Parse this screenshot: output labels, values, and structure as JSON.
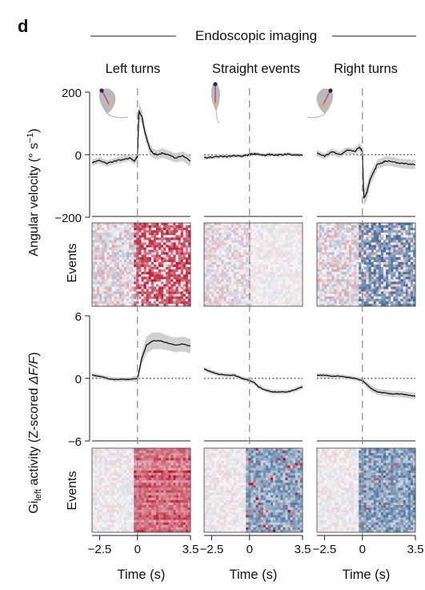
{
  "figure": {
    "panel_letter": "d",
    "group_title": "Endoscopic imaging",
    "columns": [
      "Left turns",
      "Straight events",
      "Right turns"
    ],
    "colors": {
      "line": "#111111",
      "sem": "#c8c8c8",
      "red": "#b3001b",
      "blue": "#1f4f86",
      "gray": "#cfcfcf",
      "fish_body": "#b9b9b9",
      "fish_mark": "#d24a7a",
      "fish_eye": "#1d2a55",
      "fish_tail": "#f2a33a"
    }
  },
  "chart_data": [
    {
      "type": "line",
      "panel": "angular-velocity",
      "ylabel": "Angular velocity (° s⁻¹)",
      "ylabel_main": "Angular velocity (° s",
      "ylabel_sup": "−1",
      "ylabel_close": ")",
      "ylim": [
        -200,
        200
      ],
      "yticks": [
        "200",
        "0",
        "−200"
      ],
      "ytick_values": [
        200,
        0,
        -200
      ],
      "xlim": [
        -3,
        3.5
      ],
      "reference_line_y": 0,
      "event_time": 0,
      "x": [
        -3.0,
        -2.5,
        -2.0,
        -1.5,
        -1.0,
        -0.5,
        -0.2,
        0.0,
        0.1,
        0.3,
        0.5,
        0.8,
        1.0,
        1.3,
        1.6,
        2.0,
        2.5,
        3.0,
        3.5
      ],
      "series": [
        {
          "column": "Left turns",
          "y": [
            -25,
            -18,
            -28,
            -20,
            -15,
            -10,
            -20,
            -5,
            140,
            120,
            70,
            20,
            5,
            0,
            5,
            0,
            -10,
            -5,
            -20
          ],
          "sem": [
            10,
            10,
            10,
            10,
            10,
            10,
            12,
            15,
            25,
            25,
            20,
            18,
            15,
            15,
            15,
            15,
            15,
            15,
            18
          ]
        },
        {
          "column": "Straight events",
          "y": [
            -10,
            -8,
            -5,
            -6,
            -3,
            -4,
            -2,
            0,
            2,
            3,
            2,
            0,
            -2,
            1,
            0,
            -1,
            2,
            0,
            -2
          ],
          "sem": [
            6,
            6,
            6,
            6,
            6,
            6,
            6,
            6,
            6,
            6,
            6,
            6,
            6,
            6,
            6,
            6,
            6,
            6,
            6
          ]
        },
        {
          "column": "Right turns",
          "y": [
            5,
            -5,
            10,
            0,
            15,
            10,
            25,
            10,
            -140,
            -120,
            -80,
            -50,
            -30,
            -25,
            -20,
            -22,
            -28,
            -30,
            -32
          ],
          "sem": [
            10,
            10,
            10,
            10,
            10,
            10,
            12,
            15,
            25,
            25,
            20,
            18,
            15,
            15,
            15,
            15,
            15,
            15,
            15
          ]
        }
      ]
    },
    {
      "type": "heatmap",
      "panel": "angular-velocity-events",
      "ylabel": "Events"
    },
    {
      "type": "line",
      "panel": "gi-activity",
      "ylabel_main": "Gi",
      "ylabel_sub": "left",
      "ylabel_rest": " activity (Z-scored ",
      "ylabel_italic": "ΔF/F",
      "ylabel_close": ")",
      "ylim": [
        -6,
        6
      ],
      "yticks": [
        "6",
        "0",
        "−6"
      ],
      "ytick_values": [
        6,
        0,
        -6
      ],
      "xlim": [
        -3,
        3.5
      ],
      "reference_line_y": 0,
      "event_time": 0,
      "x": [
        -3.0,
        -2.5,
        -2.0,
        -1.5,
        -1.0,
        -0.5,
        0.0,
        0.3,
        0.6,
        1.0,
        1.5,
        2.0,
        2.5,
        3.0,
        3.5
      ],
      "series": [
        {
          "column": "Left turns",
          "y": [
            0.3,
            0.2,
            0.0,
            -0.1,
            -0.1,
            -0.1,
            0.0,
            2.0,
            3.2,
            3.6,
            3.6,
            3.4,
            3.2,
            3.3,
            3.1
          ],
          "sem": [
            0.2,
            0.2,
            0.2,
            0.2,
            0.2,
            0.2,
            0.3,
            0.6,
            0.8,
            0.8,
            0.8,
            0.7,
            0.7,
            0.7,
            0.7
          ]
        },
        {
          "column": "Straight events",
          "y": [
            0.9,
            0.6,
            0.4,
            0.3,
            0.3,
            0.0,
            -0.2,
            -0.4,
            -0.8,
            -1.1,
            -1.3,
            -1.3,
            -1.3,
            -1.1,
            -0.8
          ],
          "sem": [
            0.2,
            0.2,
            0.2,
            0.2,
            0.2,
            0.2,
            0.2,
            0.2,
            0.2,
            0.2,
            0.2,
            0.2,
            0.2,
            0.2,
            0.2
          ]
        },
        {
          "column": "Right turns",
          "y": [
            0.3,
            0.3,
            0.2,
            0.2,
            0.1,
            0.0,
            -0.2,
            -0.6,
            -1.0,
            -1.3,
            -1.4,
            -1.5,
            -1.5,
            -1.6,
            -1.7
          ],
          "sem": [
            0.2,
            0.2,
            0.2,
            0.2,
            0.2,
            0.2,
            0.2,
            0.3,
            0.3,
            0.3,
            0.3,
            0.3,
            0.3,
            0.3,
            0.3
          ]
        }
      ]
    },
    {
      "type": "heatmap",
      "panel": "gi-activity-events",
      "ylabel": "Events",
      "xlabel": "Time (s)",
      "xlim": [
        -3,
        3.5
      ],
      "xticks": [
        "−2.5",
        "0",
        "3.5"
      ],
      "xtick_values": [
        -2.5,
        0,
        3.5
      ]
    }
  ]
}
